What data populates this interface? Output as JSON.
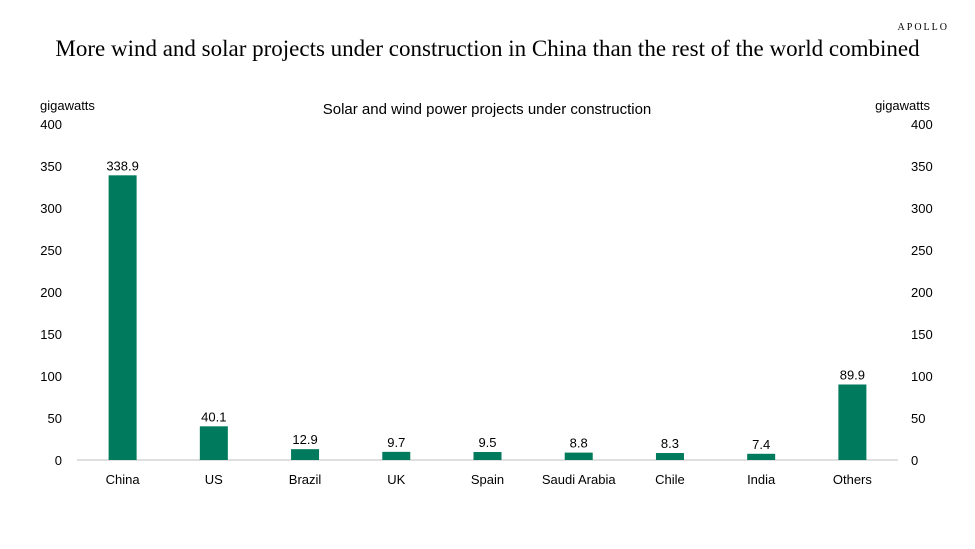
{
  "brand": "APOLLO",
  "headline": "More wind and solar projects under construction in China than the rest of the world combined",
  "colors": {
    "bar": "#007a5c",
    "axis": "#bfbfbf",
    "text": "#000000"
  },
  "chart_data": {
    "type": "bar",
    "title": "Solar and wind power projects under construction",
    "ylabel_left": "gigawatts",
    "ylabel_right": "gigawatts",
    "ylim": [
      0,
      400
    ],
    "yticks": [
      0,
      50,
      100,
      150,
      200,
      250,
      300,
      350,
      400
    ],
    "categories": [
      "China",
      "US",
      "Brazil",
      "UK",
      "Spain",
      "Saudi Arabia",
      "Chile",
      "India",
      "Others"
    ],
    "values": [
      338.9,
      40.1,
      12.9,
      9.7,
      9.5,
      8.8,
      8.3,
      7.4,
      89.9
    ],
    "value_labels": [
      "338.9",
      "40.1",
      "12.9",
      "9.7",
      "9.5",
      "8.8",
      "8.3",
      "7.4",
      "89.9"
    ]
  }
}
